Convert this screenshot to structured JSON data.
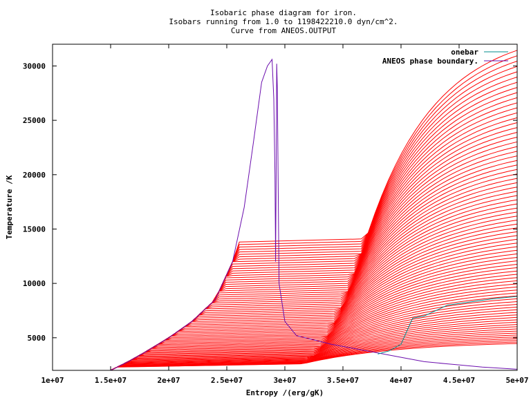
{
  "chart_data": {
    "type": "line",
    "title": [
      "Isobaric phase diagram for iron.",
      "Isobars running from 1.0 to 1198422210.0 dyn/cm^2.",
      "Curve from ANEOS.OUTPUT"
    ],
    "xlabel": "Entropy /(erg/gK)",
    "ylabel": "Temperature /K",
    "xlim": [
      10000000,
      50000000
    ],
    "ylim": [
      2000,
      32000
    ],
    "x_ticks": [
      10000000,
      15000000,
      20000000,
      25000000,
      30000000,
      35000000,
      40000000,
      45000000,
      50000000
    ],
    "x_tick_labels": [
      "1e+07",
      "1.5e+07",
      "2e+07",
      "2.5e+07",
      "3e+07",
      "3.5e+07",
      "4e+07",
      "4.5e+07",
      "5e+07"
    ],
    "y_ticks": [
      5000,
      10000,
      15000,
      20000,
      25000,
      30000
    ],
    "y_tick_labels": [
      "5000",
      "10000",
      "15000",
      "20000",
      "25000",
      "30000"
    ],
    "grid": false,
    "legend_position": "top-right",
    "legend": [
      {
        "name": "onebar",
        "color": "#008b8b"
      },
      {
        "name": "ANEOS phase boundary.",
        "color": "#6a0dad"
      }
    ],
    "colors": {
      "isobars": "#ff0000",
      "onebar": "#008b8b",
      "boundary": "#6a0dad"
    },
    "phase_boundary": {
      "x": [
        15000000,
        16500000,
        18000000,
        20000000,
        22000000,
        24000000,
        25500000,
        26500000,
        27300000,
        28000000,
        28500000,
        28900000,
        29050000,
        29150000,
        29200000,
        29250000,
        29300000,
        29350000,
        29500000,
        30000000,
        31000000,
        32500000,
        34000000,
        36000000,
        38000000,
        40000000,
        42000000,
        44000000,
        45000000,
        47000000,
        50000000
      ],
      "y": [
        2000,
        2800,
        3700,
        5000,
        6500,
        8500,
        12000,
        17000,
        23000,
        28500,
        30000,
        30600,
        27000,
        20000,
        12000,
        20000,
        30200,
        28000,
        10000,
        6500,
        5200,
        4800,
        4400,
        4000,
        3600,
        3200,
        2800,
        2600,
        2500,
        2300,
        2100
      ]
    },
    "onebar": {
      "x": [
        38000000,
        39000000,
        40000000,
        41000000,
        42000000,
        43000000,
        44000000,
        46000000,
        48000000,
        50000000
      ],
      "y": [
        3500,
        3800,
        4400,
        6800,
        7000,
        7500,
        8000,
        8300,
        8600,
        8800
      ]
    },
    "isobars": {
      "count": 80,
      "min_pressure": 1.0,
      "max_pressure": 1198422210.0,
      "x_range": [
        15000000,
        50000000
      ]
    }
  }
}
